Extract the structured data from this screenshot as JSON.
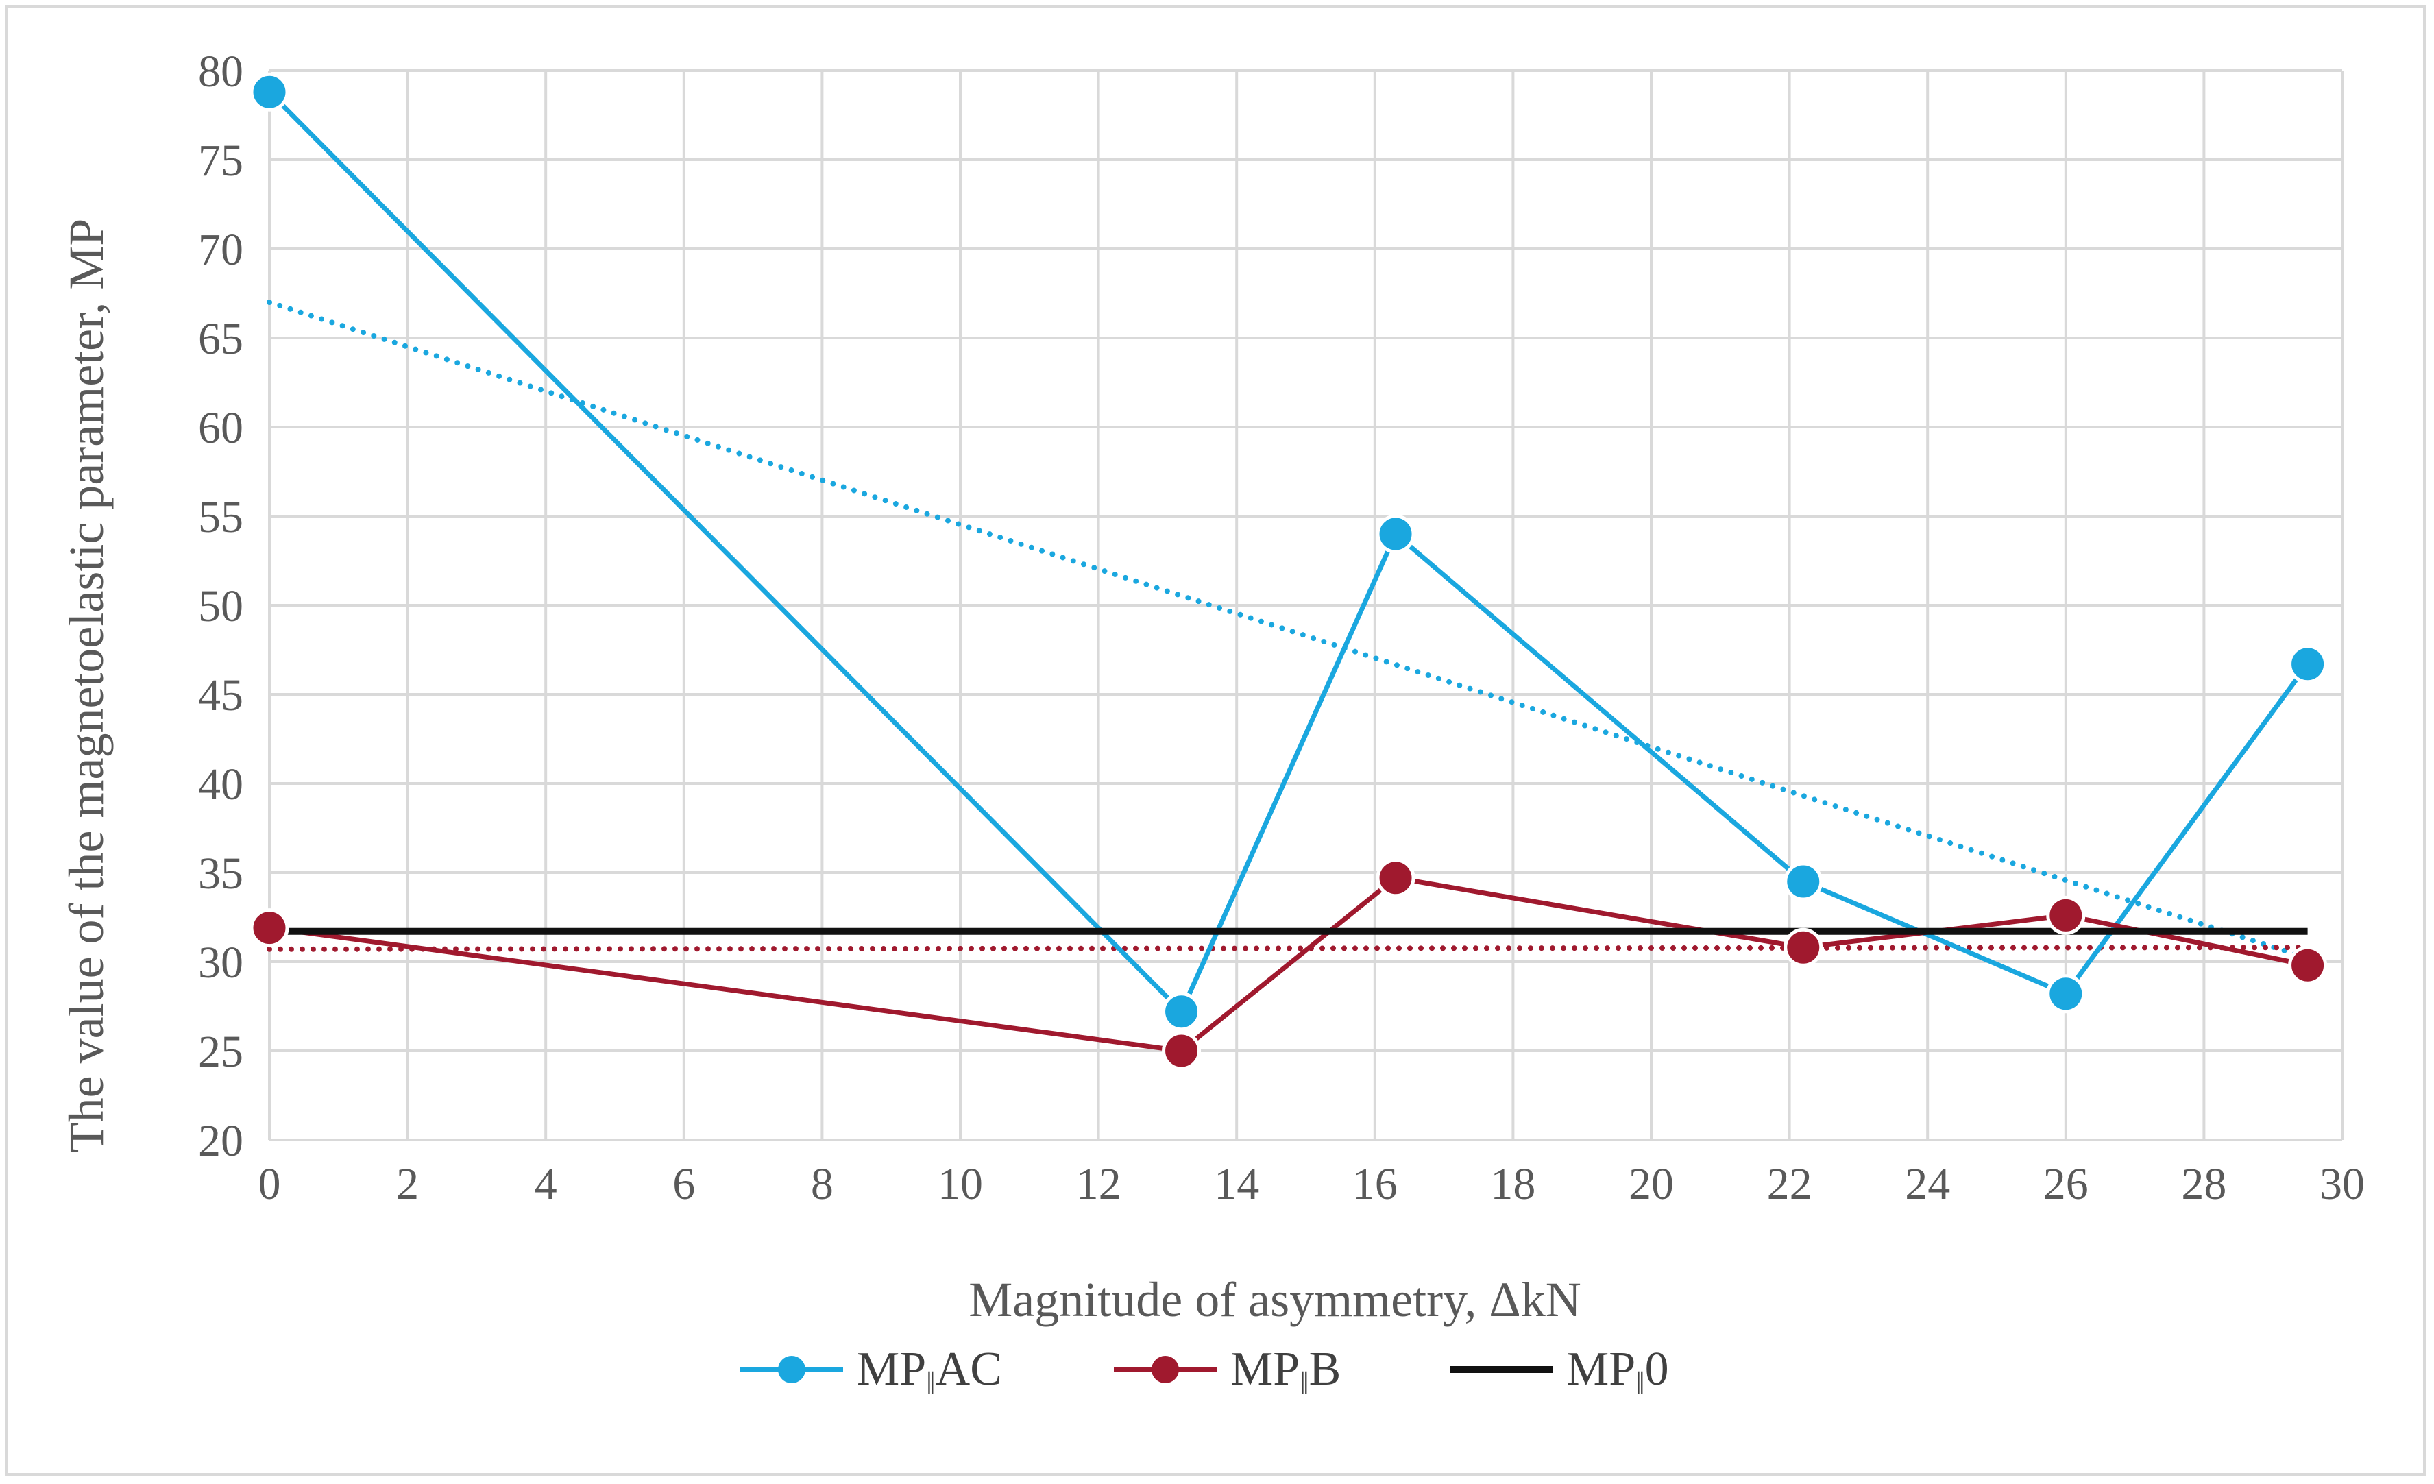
{
  "chart_data": {
    "type": "line",
    "xlabel": "Magnitude of asymmetry, ΔkN",
    "ylabel": "The value of the magnetoelastic parameter, MP",
    "xlim": [
      0,
      30
    ],
    "ylim": [
      20,
      80
    ],
    "x_ticks": [
      "0",
      "2",
      "4",
      "6",
      "8",
      "10",
      "12",
      "14",
      "16",
      "18",
      "20",
      "22",
      "24",
      "26",
      "28",
      "30"
    ],
    "y_ticks": [
      "20",
      "25",
      "30",
      "35",
      "40",
      "45",
      "50",
      "55",
      "60",
      "65",
      "70",
      "75",
      "80"
    ],
    "grid": true,
    "legend_position": "bottom",
    "series": [
      {
        "name": "MP‖AC",
        "legend_main": "MP",
        "legend_sub": "‖",
        "legend_tail": "AC",
        "color": "#1aa7df",
        "x": [
          0,
          13.2,
          16.3,
          22.2,
          26.0,
          29.5
        ],
        "values": [
          78.8,
          27.2,
          54.0,
          34.5,
          28.2,
          46.7
        ],
        "trendline": {
          "style": "dotted",
          "from": [
            0,
            67.0
          ],
          "to": [
            29.5,
            30.2
          ]
        }
      },
      {
        "name": "MP‖B",
        "legend_main": "MP",
        "legend_sub": "‖",
        "legend_tail": "B",
        "color": "#a0192e",
        "x": [
          0,
          13.2,
          16.3,
          22.2,
          26.0,
          29.5
        ],
        "values": [
          31.9,
          25.0,
          34.7,
          30.8,
          32.6,
          29.8
        ],
        "trendline": {
          "style": "dotted",
          "from": [
            0,
            30.7
          ],
          "to": [
            29.5,
            30.8
          ]
        }
      },
      {
        "name": "MP‖0",
        "legend_main": "MP",
        "legend_sub": "‖",
        "legend_tail": "0",
        "color": "#111111",
        "x": [
          0,
          29.5
        ],
        "values": [
          31.7,
          31.7
        ]
      }
    ]
  }
}
